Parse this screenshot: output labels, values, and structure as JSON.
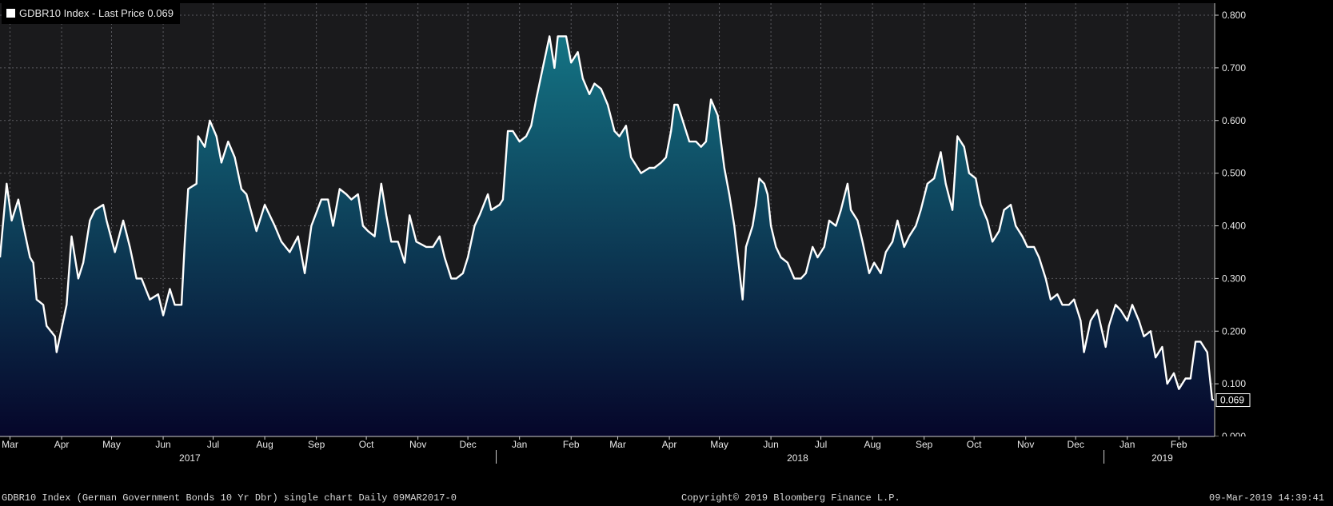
{
  "legend": {
    "label": "GDBR10 Index - Last Price 0.069",
    "swatch_color": "#ffffff"
  },
  "footer": {
    "left": "GDBR10 Index (German Government Bonds 10 Yr Dbr) single chart  Daily 09MAR2017-0",
    "center": "Copyright© 2019 Bloomberg Finance L.P.",
    "right": "09-Mar-2019 14:39:41"
  },
  "chart_data": {
    "type": "area",
    "series": [
      {
        "name": "GDBR10 Index - Last Price",
        "line_color": "#ffffff",
        "fill_top_color": "#147585",
        "fill_bottom_color": "#06062a",
        "points": [
          [
            "2017-03-09",
            0.34
          ],
          [
            "2017-03-13",
            0.48
          ],
          [
            "2017-03-16",
            0.41
          ],
          [
            "2017-03-20",
            0.45
          ],
          [
            "2017-03-23",
            0.4
          ],
          [
            "2017-03-27",
            0.34
          ],
          [
            "2017-03-29",
            0.33
          ],
          [
            "2017-03-31",
            0.26
          ],
          [
            "2017-04-04",
            0.25
          ],
          [
            "2017-04-06",
            0.21
          ],
          [
            "2017-04-11",
            0.19
          ],
          [
            "2017-04-12",
            0.16
          ],
          [
            "2017-04-18",
            0.25
          ],
          [
            "2017-04-21",
            0.38
          ],
          [
            "2017-04-25",
            0.3
          ],
          [
            "2017-04-28",
            0.33
          ],
          [
            "2017-05-02",
            0.41
          ],
          [
            "2017-05-05",
            0.43
          ],
          [
            "2017-05-10",
            0.44
          ],
          [
            "2017-05-12",
            0.41
          ],
          [
            "2017-05-17",
            0.35
          ],
          [
            "2017-05-22",
            0.41
          ],
          [
            "2017-05-26",
            0.36
          ],
          [
            "2017-05-30",
            0.3
          ],
          [
            "2017-06-02",
            0.3
          ],
          [
            "2017-06-07",
            0.26
          ],
          [
            "2017-06-12",
            0.27
          ],
          [
            "2017-06-15",
            0.23
          ],
          [
            "2017-06-19",
            0.28
          ],
          [
            "2017-06-22",
            0.25
          ],
          [
            "2017-06-26",
            0.25
          ],
          [
            "2017-06-28",
            0.37
          ],
          [
            "2017-06-30",
            0.47
          ],
          [
            "2017-07-05",
            0.48
          ],
          [
            "2017-07-06",
            0.57
          ],
          [
            "2017-07-10",
            0.55
          ],
          [
            "2017-07-13",
            0.6
          ],
          [
            "2017-07-17",
            0.57
          ],
          [
            "2017-07-20",
            0.52
          ],
          [
            "2017-07-24",
            0.56
          ],
          [
            "2017-07-28",
            0.53
          ],
          [
            "2017-08-01",
            0.47
          ],
          [
            "2017-08-04",
            0.46
          ],
          [
            "2017-08-10",
            0.39
          ],
          [
            "2017-08-15",
            0.44
          ],
          [
            "2017-08-21",
            0.4
          ],
          [
            "2017-08-25",
            0.37
          ],
          [
            "2017-08-30",
            0.35
          ],
          [
            "2017-09-04",
            0.38
          ],
          [
            "2017-09-08",
            0.31
          ],
          [
            "2017-09-12",
            0.4
          ],
          [
            "2017-09-18",
            0.45
          ],
          [
            "2017-09-22",
            0.45
          ],
          [
            "2017-09-25",
            0.4
          ],
          [
            "2017-09-29",
            0.47
          ],
          [
            "2017-10-03",
            0.46
          ],
          [
            "2017-10-06",
            0.45
          ],
          [
            "2017-10-10",
            0.46
          ],
          [
            "2017-10-13",
            0.4
          ],
          [
            "2017-10-16",
            0.39
          ],
          [
            "2017-10-20",
            0.38
          ],
          [
            "2017-10-24",
            0.48
          ],
          [
            "2017-10-27",
            0.42
          ],
          [
            "2017-10-30",
            0.37
          ],
          [
            "2017-11-03",
            0.37
          ],
          [
            "2017-11-07",
            0.33
          ],
          [
            "2017-11-10",
            0.42
          ],
          [
            "2017-11-14",
            0.37
          ],
          [
            "2017-11-20",
            0.36
          ],
          [
            "2017-11-24",
            0.36
          ],
          [
            "2017-11-28",
            0.38
          ],
          [
            "2017-12-01",
            0.34
          ],
          [
            "2017-12-05",
            0.3
          ],
          [
            "2017-12-08",
            0.3
          ],
          [
            "2017-12-12",
            0.31
          ],
          [
            "2017-12-15",
            0.34
          ],
          [
            "2017-12-19",
            0.4
          ],
          [
            "2017-12-22",
            0.42
          ],
          [
            "2017-12-27",
            0.46
          ],
          [
            "2017-12-29",
            0.43
          ],
          [
            "2018-01-03",
            0.44
          ],
          [
            "2018-01-05",
            0.45
          ],
          [
            "2018-01-08",
            0.58
          ],
          [
            "2018-01-11",
            0.58
          ],
          [
            "2018-01-15",
            0.56
          ],
          [
            "2018-01-19",
            0.57
          ],
          [
            "2018-01-22",
            0.59
          ],
          [
            "2018-01-25",
            0.64
          ],
          [
            "2018-01-29",
            0.7
          ],
          [
            "2018-02-02",
            0.76
          ],
          [
            "2018-02-05",
            0.7
          ],
          [
            "2018-02-07",
            0.76
          ],
          [
            "2018-02-12",
            0.76
          ],
          [
            "2018-02-15",
            0.71
          ],
          [
            "2018-02-19",
            0.73
          ],
          [
            "2018-02-22",
            0.68
          ],
          [
            "2018-02-26",
            0.65
          ],
          [
            "2018-03-01",
            0.67
          ],
          [
            "2018-03-05",
            0.66
          ],
          [
            "2018-03-09",
            0.63
          ],
          [
            "2018-03-13",
            0.58
          ],
          [
            "2018-03-16",
            0.57
          ],
          [
            "2018-03-20",
            0.59
          ],
          [
            "2018-03-23",
            0.53
          ],
          [
            "2018-03-27",
            0.51
          ],
          [
            "2018-03-29",
            0.5
          ],
          [
            "2018-04-03",
            0.51
          ],
          [
            "2018-04-06",
            0.51
          ],
          [
            "2018-04-10",
            0.52
          ],
          [
            "2018-04-13",
            0.53
          ],
          [
            "2018-04-16",
            0.58
          ],
          [
            "2018-04-18",
            0.63
          ],
          [
            "2018-04-20",
            0.63
          ],
          [
            "2018-04-24",
            0.59
          ],
          [
            "2018-04-27",
            0.56
          ],
          [
            "2018-05-01",
            0.56
          ],
          [
            "2018-05-04",
            0.55
          ],
          [
            "2018-05-07",
            0.56
          ],
          [
            "2018-05-10",
            0.64
          ],
          [
            "2018-05-14",
            0.61
          ],
          [
            "2018-05-16",
            0.56
          ],
          [
            "2018-05-18",
            0.51
          ],
          [
            "2018-05-21",
            0.46
          ],
          [
            "2018-05-24",
            0.4
          ],
          [
            "2018-05-29",
            0.26
          ],
          [
            "2018-05-31",
            0.36
          ],
          [
            "2018-06-04",
            0.4
          ],
          [
            "2018-06-06",
            0.44
          ],
          [
            "2018-06-08",
            0.49
          ],
          [
            "2018-06-11",
            0.48
          ],
          [
            "2018-06-13",
            0.46
          ],
          [
            "2018-06-15",
            0.4
          ],
          [
            "2018-06-18",
            0.36
          ],
          [
            "2018-06-21",
            0.34
          ],
          [
            "2018-06-25",
            0.33
          ],
          [
            "2018-06-29",
            0.3
          ],
          [
            "2018-07-03",
            0.3
          ],
          [
            "2018-07-06",
            0.31
          ],
          [
            "2018-07-10",
            0.36
          ],
          [
            "2018-07-13",
            0.34
          ],
          [
            "2018-07-17",
            0.36
          ],
          [
            "2018-07-20",
            0.41
          ],
          [
            "2018-07-24",
            0.4
          ],
          [
            "2018-07-27",
            0.43
          ],
          [
            "2018-07-31",
            0.48
          ],
          [
            "2018-08-02",
            0.43
          ],
          [
            "2018-08-06",
            0.41
          ],
          [
            "2018-08-09",
            0.37
          ],
          [
            "2018-08-13",
            0.31
          ],
          [
            "2018-08-16",
            0.33
          ],
          [
            "2018-08-20",
            0.31
          ],
          [
            "2018-08-23",
            0.35
          ],
          [
            "2018-08-27",
            0.37
          ],
          [
            "2018-08-30",
            0.41
          ],
          [
            "2018-09-03",
            0.36
          ],
          [
            "2018-09-06",
            0.38
          ],
          [
            "2018-09-10",
            0.4
          ],
          [
            "2018-09-13",
            0.43
          ],
          [
            "2018-09-17",
            0.48
          ],
          [
            "2018-09-21",
            0.49
          ],
          [
            "2018-09-25",
            0.54
          ],
          [
            "2018-09-28",
            0.48
          ],
          [
            "2018-10-02",
            0.43
          ],
          [
            "2018-10-05",
            0.57
          ],
          [
            "2018-10-09",
            0.55
          ],
          [
            "2018-10-12",
            0.5
          ],
          [
            "2018-10-16",
            0.49
          ],
          [
            "2018-10-19",
            0.44
          ],
          [
            "2018-10-23",
            0.41
          ],
          [
            "2018-10-26",
            0.37
          ],
          [
            "2018-10-30",
            0.39
          ],
          [
            "2018-11-02",
            0.43
          ],
          [
            "2018-11-06",
            0.44
          ],
          [
            "2018-11-09",
            0.4
          ],
          [
            "2018-11-13",
            0.38
          ],
          [
            "2018-11-16",
            0.36
          ],
          [
            "2018-11-20",
            0.36
          ],
          [
            "2018-11-23",
            0.34
          ],
          [
            "2018-11-27",
            0.3
          ],
          [
            "2018-11-30",
            0.26
          ],
          [
            "2018-12-04",
            0.27
          ],
          [
            "2018-12-07",
            0.25
          ],
          [
            "2018-12-11",
            0.25
          ],
          [
            "2018-12-14",
            0.26
          ],
          [
            "2018-12-18",
            0.22
          ],
          [
            "2018-12-20",
            0.16
          ],
          [
            "2018-12-24",
            0.22
          ],
          [
            "2018-12-28",
            0.24
          ],
          [
            "2019-01-02",
            0.17
          ],
          [
            "2019-01-04",
            0.21
          ],
          [
            "2019-01-08",
            0.25
          ],
          [
            "2019-01-11",
            0.24
          ],
          [
            "2019-01-15",
            0.22
          ],
          [
            "2019-01-18",
            0.25
          ],
          [
            "2019-01-22",
            0.22
          ],
          [
            "2019-01-25",
            0.19
          ],
          [
            "2019-01-29",
            0.2
          ],
          [
            "2019-02-01",
            0.15
          ],
          [
            "2019-02-05",
            0.17
          ],
          [
            "2019-02-08",
            0.1
          ],
          [
            "2019-02-12",
            0.12
          ],
          [
            "2019-02-15",
            0.09
          ],
          [
            "2019-02-19",
            0.11
          ],
          [
            "2019-02-22",
            0.11
          ],
          [
            "2019-02-25",
            0.18
          ],
          [
            "2019-02-28",
            0.18
          ],
          [
            "2019-03-04",
            0.16
          ],
          [
            "2019-03-07",
            0.07
          ],
          [
            "2019-03-08",
            0.069
          ]
        ]
      }
    ],
    "x_range": [
      "2017-03-09",
      "2019-03-08"
    ],
    "y_range": [
      0.0,
      0.8
    ],
    "y_ticks": [
      "0.000",
      "0.100",
      "0.200",
      "0.300",
      "0.400",
      "0.500",
      "0.600",
      "0.700",
      "0.800"
    ],
    "y_axis_side": "right",
    "x_month_ticks": [
      {
        "date": "2017-03-15",
        "label": "Mar"
      },
      {
        "date": "2017-04-15",
        "label": "Apr"
      },
      {
        "date": "2017-05-15",
        "label": "May"
      },
      {
        "date": "2017-06-15",
        "label": "Jun"
      },
      {
        "date": "2017-07-15",
        "label": "Jul"
      },
      {
        "date": "2017-08-15",
        "label": "Aug"
      },
      {
        "date": "2017-09-15",
        "label": "Sep"
      },
      {
        "date": "2017-10-15",
        "label": "Oct"
      },
      {
        "date": "2017-11-15",
        "label": "Nov"
      },
      {
        "date": "2017-12-15",
        "label": "Dec"
      },
      {
        "date": "2018-01-15",
        "label": "Jan"
      },
      {
        "date": "2018-02-15",
        "label": "Feb"
      },
      {
        "date": "2018-03-15",
        "label": "Mar"
      },
      {
        "date": "2018-04-15",
        "label": "Apr"
      },
      {
        "date": "2018-05-15",
        "label": "May"
      },
      {
        "date": "2018-06-15",
        "label": "Jun"
      },
      {
        "date": "2018-07-15",
        "label": "Jul"
      },
      {
        "date": "2018-08-15",
        "label": "Aug"
      },
      {
        "date": "2018-09-15",
        "label": "Sep"
      },
      {
        "date": "2018-10-15",
        "label": "Oct"
      },
      {
        "date": "2018-11-15",
        "label": "Nov"
      },
      {
        "date": "2018-12-15",
        "label": "Dec"
      },
      {
        "date": "2019-01-15",
        "label": "Jan"
      },
      {
        "date": "2019-02-15",
        "label": "Feb"
      }
    ],
    "x_year_labels": [
      {
        "label": "2017",
        "center": "2017-07-01",
        "divider": "2018-01-01"
      },
      {
        "label": "2018",
        "center": "2018-07-01",
        "divider": "2019-01-01"
      },
      {
        "label": "2019",
        "center": "2019-02-05",
        "divider": null
      }
    ],
    "last_value_label": "0.069",
    "last_value_color": "#ff8c00",
    "grid": true,
    "grid_style": "dotted",
    "background_color": "#1a1a1c",
    "legend_position": "top-left"
  }
}
